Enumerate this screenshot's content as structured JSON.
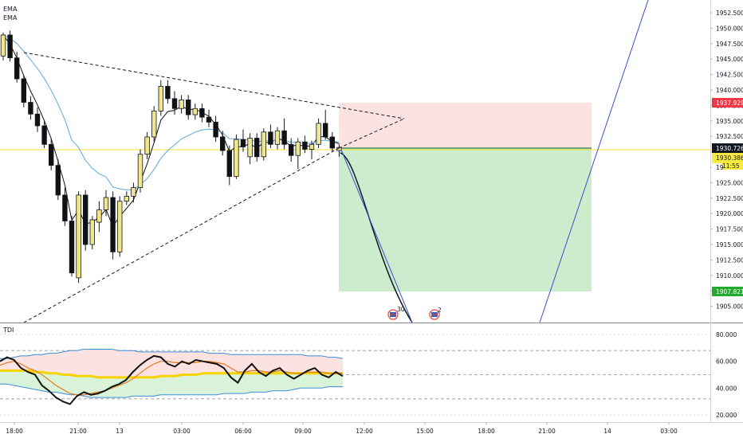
{
  "indicators": {
    "ema1": "EMA",
    "ema2": "EMA",
    "tdi": "TDI"
  },
  "colors": {
    "bull": "#f0e68c",
    "bear": "#111111",
    "stop_zone": "#fde2e2",
    "target_zone": "#cdeccd",
    "ema_fast": "#111111",
    "ema_slow": "#5aa8d8",
    "projection": "#111111",
    "proj_blue": "#3a4fd0",
    "tag_red": "#f23645",
    "tag_green": "#22ab2e",
    "tag_black": "#131722",
    "tag_yellow": "#f5e942"
  },
  "price_axis": {
    "ticks": [
      "1952.500",
      "1950.000",
      "1947.500",
      "1945.000",
      "1942.500",
      "1940.000",
      "1937.500",
      "1935.000",
      "1932.500",
      "1930.000",
      "1927.500",
      "1925.000",
      "1922.500",
      "1920.000",
      "1917.500",
      "1915.000",
      "1912.500",
      "1910.000",
      "1907.500",
      "1905.000"
    ],
    "tag_stop": "1937.929",
    "tag_price": "1930.726",
    "tag_entry": "1930.386",
    "tag_timer": "11:55",
    "tag_partial": "19",
    "tag_target": "1907.821"
  },
  "tdi_axis": {
    "ticks": [
      "80.000",
      "60.000",
      "40.000",
      "20.000"
    ]
  },
  "time_axis": {
    "labels": [
      "18:00",
      "21:00",
      "13",
      "03:00",
      "06:00",
      "09:00",
      "12:00",
      "15:00",
      "18:00",
      "21:00",
      "14",
      "03:00"
    ]
  },
  "events": {
    "event1_count": "30",
    "event2_count": "2"
  },
  "candles": [
    [
      "o",
      1945.5,
      1949.3,
      1944.8,
      1948.9
    ],
    [
      "c",
      1948.9,
      1949.6,
      1944.6,
      1945.2
    ],
    [
      "c",
      1945.2,
      1946.2,
      1941.2,
      1941.8
    ],
    [
      "c",
      1941.8,
      1942.4,
      1937.2,
      1938.0
    ],
    [
      "c",
      1938.0,
      1939.0,
      1935.2,
      1936.1
    ],
    [
      "c",
      1936.1,
      1937.2,
      1933.2,
      1934.2
    ],
    [
      "c",
      1934.2,
      1935.1,
      1930.6,
      1931.2
    ],
    [
      "c",
      1931.2,
      1932.2,
      1927.0,
      1927.8
    ],
    [
      "c",
      1927.8,
      1928.8,
      1922.2,
      1923.0
    ],
    [
      "c",
      1923.0,
      1924.2,
      1918.0,
      1918.8
    ],
    [
      "c",
      1918.8,
      1919.6,
      1909.8,
      1910.4
    ],
    [
      "o",
      1909.6,
      1923.6,
      1908.8,
      1923.0
    ],
    [
      "c",
      1923.0,
      1923.8,
      1914.0,
      1915.0
    ],
    [
      "o",
      1915.0,
      1919.6,
      1914.2,
      1919.0
    ],
    [
      "o",
      1918.6,
      1922.0,
      1917.0,
      1920.6
    ],
    [
      "o",
      1920.6,
      1923.8,
      1919.6,
      1922.6
    ],
    [
      "c",
      1922.6,
      1923.6,
      1912.6,
      1913.8
    ],
    [
      "o",
      1913.8,
      1922.8,
      1913.0,
      1922.0
    ],
    [
      "o",
      1922.0,
      1923.6,
      1921.4,
      1922.8
    ],
    [
      "o",
      1922.8,
      1925.0,
      1921.8,
      1924.2
    ],
    [
      "o",
      1924.2,
      1930.4,
      1923.4,
      1929.6
    ],
    [
      "o",
      1929.6,
      1933.2,
      1928.8,
      1932.4
    ],
    [
      "o",
      1932.4,
      1937.4,
      1931.6,
      1936.6
    ],
    [
      "o",
      1936.6,
      1941.6,
      1935.8,
      1940.6
    ],
    [
      "c",
      1940.6,
      1941.6,
      1937.8,
      1938.6
    ],
    [
      "c",
      1938.6,
      1939.8,
      1936.0,
      1937.0
    ],
    [
      "o",
      1937.0,
      1939.2,
      1936.2,
      1938.4
    ],
    [
      "c",
      1938.4,
      1939.2,
      1935.2,
      1936.0
    ],
    [
      "o",
      1936.0,
      1937.8,
      1935.2,
      1937.0
    ],
    [
      "c",
      1937.0,
      1937.8,
      1934.8,
      1935.6
    ],
    [
      "c",
      1935.6,
      1936.8,
      1934.0,
      1934.8
    ],
    [
      "c",
      1934.8,
      1935.8,
      1931.6,
      1932.4
    ],
    [
      "c",
      1932.4,
      1933.4,
      1929.4,
      1930.2
    ],
    [
      "c",
      1930.2,
      1931.0,
      1924.6,
      1926.0
    ],
    [
      "o",
      1926.0,
      1932.8,
      1925.6,
      1932.0
    ],
    [
      "c",
      1932.0,
      1933.6,
      1930.0,
      1930.8
    ],
    [
      "o",
      1929.2,
      1933.0,
      1928.0,
      1932.2
    ],
    [
      "c",
      1932.2,
      1933.0,
      1928.4,
      1929.2
    ],
    [
      "o",
      1929.2,
      1933.8,
      1928.6,
      1933.2
    ],
    [
      "c",
      1933.2,
      1934.4,
      1930.6,
      1931.2
    ],
    [
      "o",
      1931.2,
      1934.0,
      1930.4,
      1933.4
    ],
    [
      "c",
      1933.4,
      1935.4,
      1930.4,
      1931.2
    ],
    [
      "c",
      1931.2,
      1932.2,
      1928.4,
      1929.4
    ],
    [
      "o",
      1929.4,
      1932.2,
      1927.2,
      1931.6
    ],
    [
      "c",
      1931.6,
      1932.6,
      1929.8,
      1930.4
    ],
    [
      "o",
      1930.4,
      1931.8,
      1928.8,
      1931.2
    ],
    [
      "o",
      1931.2,
      1935.4,
      1930.6,
      1934.6
    ],
    [
      "c",
      1934.6,
      1936.8,
      1932.0,
      1932.4
    ],
    [
      "c",
      1932.4,
      1933.2,
      1930.0,
      1930.6
    ],
    [
      "o",
      1930.2,
      1931.2,
      1929.2,
      1930.7
    ]
  ],
  "tdi_series": {
    "rsi": [
      60,
      63,
      61,
      55,
      52,
      50,
      42,
      38,
      33,
      30,
      28,
      34,
      37,
      35,
      36,
      38,
      41,
      43,
      46,
      52,
      57,
      61,
      64,
      63,
      58,
      56,
      60,
      58,
      61,
      60,
      59,
      58,
      55,
      48,
      44,
      53,
      58,
      52,
      49,
      53,
      55,
      50,
      47,
      50,
      53,
      55,
      50,
      48,
      52,
      49
    ],
    "signal": [
      57,
      59,
      60,
      58,
      55,
      53,
      50,
      46,
      42,
      39,
      36,
      35,
      35,
      36,
      37,
      38,
      40,
      42,
      44,
      47,
      51,
      55,
      58,
      60,
      60,
      59,
      59,
      59,
      59,
      60,
      60,
      59,
      58,
      55,
      52,
      52,
      53,
      53,
      52,
      52,
      53,
      52,
      51,
      51,
      52,
      52,
      52,
      51,
      51,
      51
    ],
    "mbl": [
      53,
      53,
      53,
      53,
      53,
      52,
      52,
      51,
      51,
      50,
      50,
      49,
      49,
      49,
      48,
      48,
      48,
      48,
      48,
      48,
      48,
      48,
      48,
      49,
      49,
      49,
      50,
      50,
      50,
      51,
      51,
      51,
      51,
      51,
      51,
      51,
      51,
      51,
      51,
      51,
      51,
      51,
      51,
      51,
      51,
      51,
      51,
      51,
      51,
      51
    ],
    "upper": [
      62,
      62,
      63,
      64,
      64,
      65,
      65,
      66,
      66,
      67,
      68,
      68,
      69,
      69,
      69,
      69,
      69,
      68,
      68,
      68,
      67,
      67,
      67,
      67,
      67,
      67,
      67,
      67,
      67,
      67,
      66,
      66,
      66,
      65,
      65,
      65,
      65,
      65,
      65,
      65,
      65,
      65,
      65,
      65,
      64,
      64,
      64,
      63,
      63,
      62
    ],
    "lower": [
      43,
      43,
      42,
      41,
      40,
      39,
      38,
      37,
      37,
      36,
      35,
      35,
      34,
      33,
      33,
      33,
      33,
      33,
      33,
      34,
      34,
      34,
      34,
      35,
      35,
      35,
      35,
      35,
      35,
      35,
      35,
      35,
      36,
      36,
      36,
      36,
      37,
      37,
      37,
      38,
      38,
      38,
      39,
      40,
      40,
      40,
      40,
      41,
      41,
      41
    ]
  }
}
